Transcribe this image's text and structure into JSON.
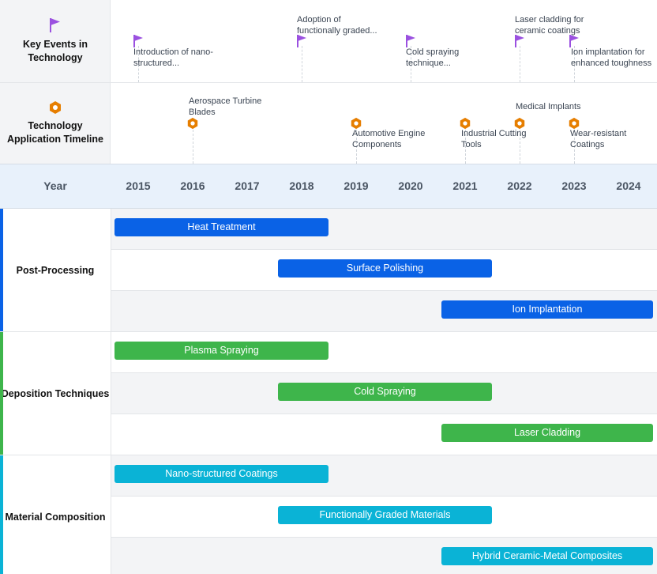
{
  "chart_data": {
    "type": "gantt",
    "x_axis": {
      "title": "Year",
      "ticks": [
        2015,
        2016,
        2017,
        2018,
        2019,
        2020,
        2021,
        2022,
        2023,
        2024
      ]
    },
    "milestone_tracks": [
      {
        "label": "Key Events in Technology",
        "icon": "flag-icon",
        "color": "#9b51e0",
        "events": [
          {
            "year": 2015,
            "text": "Introduction of nano-structured..."
          },
          {
            "year": 2018,
            "text": "Adoption of functionally graded..."
          },
          {
            "year": 2020,
            "text": "Cold spraying technique..."
          },
          {
            "year": 2022,
            "text": "Laser cladding for ceramic coatings"
          },
          {
            "year": 2023,
            "text": "Ion implantation for enhanced toughness"
          }
        ]
      },
      {
        "label": "Technology Application Timeline",
        "icon": "hexagon-icon",
        "color": "#e67e00",
        "events": [
          {
            "year": 2016,
            "text": "Aerospace Turbine Blades"
          },
          {
            "year": 2019,
            "text": "Automotive Engine Components"
          },
          {
            "year": 2021,
            "text": "Industrial Cutting Tools"
          },
          {
            "year": 2022,
            "text": "Medical Implants"
          },
          {
            "year": 2023,
            "text": "Wear-resistant Coatings"
          }
        ]
      }
    ],
    "groups": [
      {
        "name": "Post-Processing",
        "color": "#0a62e6",
        "tasks": [
          {
            "name": "Heat Treatment",
            "start": 2015,
            "end": 2019
          },
          {
            "name": "Surface Polishing",
            "start": 2018,
            "end": 2022
          },
          {
            "name": "Ion Implantation",
            "start": 2021,
            "end": 2025
          }
        ]
      },
      {
        "name": "Deposition Techniques",
        "color": "#3eb54b",
        "tasks": [
          {
            "name": "Plasma Spraying",
            "start": 2015,
            "end": 2019
          },
          {
            "name": "Cold Spraying",
            "start": 2018,
            "end": 2022
          },
          {
            "name": "Laser Cladding",
            "start": 2021,
            "end": 2025
          }
        ]
      },
      {
        "name": "Material Composition",
        "color": "#0ab3d6",
        "tasks": [
          {
            "name": "Nano-structured Coatings",
            "start": 2015,
            "end": 2019
          },
          {
            "name": "Functionally Graded Materials",
            "start": 2018,
            "end": 2022
          },
          {
            "name": "Hybrid Ceramic-Metal Composites",
            "start": 2021,
            "end": 2025
          }
        ]
      }
    ]
  }
}
